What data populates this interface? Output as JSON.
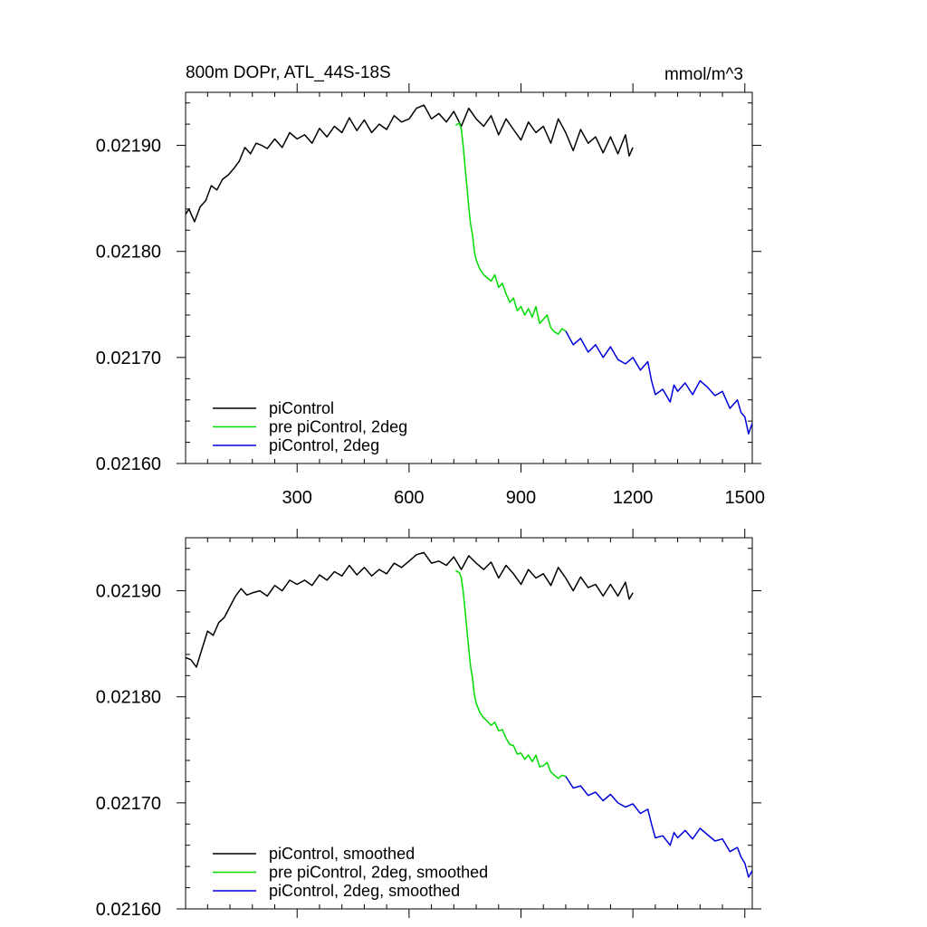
{
  "chart_data": [
    {
      "type": "line",
      "title": "800m DOPr, ATL_44S-18S",
      "units": "mmol/m^3",
      "xlabel": "",
      "ylabel": "",
      "xlim": [
        1,
        1520
      ],
      "ylim": [
        0.0216,
        0.02195
      ],
      "xticks": [
        300,
        600,
        900,
        1200,
        1500
      ],
      "xtick_labels": [
        "300",
        "600",
        "900",
        "1200",
        "1500"
      ],
      "yticks": [
        0.0216,
        0.0217,
        0.0218,
        0.0219
      ],
      "ytick_labels": [
        "0.02160",
        "0.02170",
        "0.02180",
        "0.02190"
      ],
      "show_xtick_labels": true,
      "grid": false,
      "legend_position": "bottom-left",
      "series": [
        {
          "name": "piControl",
          "color": "#000000",
          "x": [
            1,
            10,
            25,
            40,
            55,
            70,
            85,
            100,
            115,
            130,
            145,
            160,
            175,
            190,
            205,
            220,
            240,
            260,
            280,
            300,
            320,
            340,
            360,
            380,
            400,
            420,
            440,
            460,
            480,
            500,
            520,
            540,
            560,
            580,
            600,
            620,
            640,
            660,
            680,
            700,
            720,
            740,
            760,
            780,
            800,
            820,
            840,
            860,
            880,
            900,
            920,
            940,
            960,
            980,
            1000,
            1020,
            1040,
            1060,
            1080,
            1100,
            1120,
            1140,
            1160,
            1180,
            1190,
            1200
          ],
          "y": [
            0.021835,
            0.02184,
            0.021828,
            0.021842,
            0.021848,
            0.021862,
            0.021858,
            0.021868,
            0.021872,
            0.021878,
            0.021885,
            0.021898,
            0.021892,
            0.021902,
            0.0219,
            0.021897,
            0.021906,
            0.021898,
            0.021912,
            0.021906,
            0.02191,
            0.021902,
            0.021916,
            0.021908,
            0.021918,
            0.021912,
            0.021926,
            0.021914,
            0.021924,
            0.021912,
            0.02192,
            0.021915,
            0.021928,
            0.021922,
            0.021925,
            0.021935,
            0.021938,
            0.021925,
            0.02193,
            0.021922,
            0.021932,
            0.021918,
            0.021935,
            0.021925,
            0.021918,
            0.021928,
            0.02191,
            0.021925,
            0.021915,
            0.021905,
            0.021922,
            0.021912,
            0.021918,
            0.021902,
            0.021925,
            0.021912,
            0.021895,
            0.021915,
            0.021902,
            0.021908,
            0.021893,
            0.021908,
            0.021892,
            0.02191,
            0.02189,
            0.021898
          ]
        },
        {
          "name": "pre piControl, 2deg",
          "color": "#00dd00",
          "x": [
            725,
            735,
            740,
            745,
            750,
            755,
            760,
            765,
            770,
            775,
            780,
            790,
            800,
            810,
            820,
            830,
            840,
            850,
            860,
            870,
            880,
            890,
            900,
            910,
            920,
            930,
            940,
            950,
            960,
            970,
            980,
            990,
            1000,
            1010,
            1020
          ],
          "y": [
            0.021919,
            0.021921,
            0.021915,
            0.0219,
            0.02188,
            0.021862,
            0.021842,
            0.021825,
            0.021816,
            0.0218,
            0.021792,
            0.021783,
            0.021778,
            0.021775,
            0.021772,
            0.021778,
            0.021766,
            0.02177,
            0.02176,
            0.021752,
            0.021756,
            0.021744,
            0.021748,
            0.02174,
            0.021746,
            0.021738,
            0.021748,
            0.021732,
            0.021736,
            0.02174,
            0.021728,
            0.021724,
            0.021722,
            0.021727,
            0.021725
          ]
        },
        {
          "name": "piControl, 2deg",
          "color": "#0000dd",
          "x": [
            1020,
            1040,
            1060,
            1080,
            1100,
            1120,
            1140,
            1160,
            1180,
            1200,
            1220,
            1240,
            1250,
            1260,
            1280,
            1300,
            1310,
            1320,
            1340,
            1360,
            1380,
            1400,
            1420,
            1440,
            1460,
            1480,
            1490,
            1500,
            1510,
            1520
          ],
          "y": [
            0.021725,
            0.021712,
            0.021718,
            0.021705,
            0.021712,
            0.0217,
            0.02171,
            0.021698,
            0.021694,
            0.0217,
            0.021688,
            0.021696,
            0.021678,
            0.021665,
            0.02167,
            0.021658,
            0.021674,
            0.021668,
            0.021676,
            0.021665,
            0.021678,
            0.021672,
            0.021664,
            0.021668,
            0.021652,
            0.02166,
            0.021648,
            0.021644,
            0.021628,
            0.021638
          ]
        }
      ]
    },
    {
      "type": "line",
      "title": "",
      "units": "",
      "xlabel": "",
      "ylabel": "",
      "xlim": [
        1,
        1520
      ],
      "ylim": [
        0.0216,
        0.02195
      ],
      "xticks": [
        300,
        600,
        900,
        1200,
        1500
      ],
      "xtick_labels": [],
      "yticks": [
        0.0216,
        0.0217,
        0.0218,
        0.0219
      ],
      "ytick_labels": [
        "0.02160",
        "0.02170",
        "0.02180",
        "0.02190"
      ],
      "show_xtick_labels": false,
      "grid": false,
      "legend_position": "bottom-left",
      "series": [
        {
          "name": "piControl, smoothed",
          "color": "#000000",
          "x": [
            1,
            15,
            30,
            45,
            60,
            75,
            90,
            105,
            120,
            135,
            150,
            165,
            180,
            200,
            220,
            240,
            260,
            280,
            300,
            320,
            340,
            360,
            380,
            400,
            420,
            440,
            460,
            480,
            500,
            520,
            540,
            560,
            580,
            600,
            620,
            640,
            660,
            680,
            700,
            720,
            740,
            760,
            780,
            800,
            820,
            840,
            860,
            880,
            900,
            920,
            940,
            960,
            980,
            1000,
            1020,
            1040,
            1060,
            1080,
            1100,
            1120,
            1140,
            1160,
            1180,
            1190,
            1200
          ],
          "y": [
            0.021837,
            0.021835,
            0.021828,
            0.021845,
            0.021862,
            0.021858,
            0.02187,
            0.021875,
            0.021885,
            0.021895,
            0.021902,
            0.021896,
            0.021898,
            0.0219,
            0.021895,
            0.021905,
            0.0219,
            0.02191,
            0.021906,
            0.02191,
            0.021905,
            0.021915,
            0.02191,
            0.021918,
            0.021914,
            0.021924,
            0.021915,
            0.021922,
            0.021914,
            0.02192,
            0.021916,
            0.021926,
            0.021922,
            0.021928,
            0.021934,
            0.021936,
            0.021926,
            0.021928,
            0.021924,
            0.021932,
            0.02192,
            0.021933,
            0.021926,
            0.02192,
            0.021927,
            0.021912,
            0.021924,
            0.021916,
            0.021906,
            0.02192,
            0.021912,
            0.021916,
            0.021905,
            0.021922,
            0.021912,
            0.0219,
            0.021913,
            0.021903,
            0.021906,
            0.021895,
            0.021906,
            0.021895,
            0.021908,
            0.021892,
            0.021898
          ]
        },
        {
          "name": "pre piControl, 2deg, smoothed",
          "color": "#00dd00",
          "x": [
            725,
            735,
            740,
            745,
            750,
            755,
            760,
            765,
            770,
            775,
            780,
            790,
            800,
            810,
            820,
            830,
            840,
            850,
            860,
            870,
            880,
            890,
            900,
            910,
            920,
            930,
            940,
            950,
            960,
            970,
            980,
            990,
            1000,
            1010,
            1020
          ],
          "y": [
            0.021919,
            0.021917,
            0.021912,
            0.0219,
            0.021882,
            0.021864,
            0.021845,
            0.021828,
            0.021818,
            0.021802,
            0.021794,
            0.021785,
            0.02178,
            0.021777,
            0.021773,
            0.021776,
            0.021768,
            0.021769,
            0.021761,
            0.021755,
            0.021754,
            0.021746,
            0.021747,
            0.021741,
            0.021745,
            0.021739,
            0.021745,
            0.021734,
            0.021735,
            0.021738,
            0.021729,
            0.021726,
            0.021723,
            0.021726,
            0.021725
          ]
        },
        {
          "name": "piControl, 2deg, smoothed",
          "color": "#0000dd",
          "x": [
            1020,
            1040,
            1060,
            1080,
            1100,
            1120,
            1140,
            1160,
            1180,
            1200,
            1220,
            1240,
            1250,
            1260,
            1280,
            1300,
            1310,
            1320,
            1340,
            1360,
            1380,
            1400,
            1420,
            1440,
            1460,
            1480,
            1490,
            1500,
            1510,
            1520
          ],
          "y": [
            0.021725,
            0.021714,
            0.021716,
            0.021707,
            0.02171,
            0.021702,
            0.021708,
            0.0217,
            0.021696,
            0.021699,
            0.02169,
            0.021694,
            0.02168,
            0.021667,
            0.021669,
            0.02166,
            0.021672,
            0.021667,
            0.021674,
            0.021666,
            0.021676,
            0.02167,
            0.021664,
            0.021666,
            0.021654,
            0.021658,
            0.021649,
            0.021643,
            0.02163,
            0.021636
          ]
        }
      ]
    }
  ]
}
